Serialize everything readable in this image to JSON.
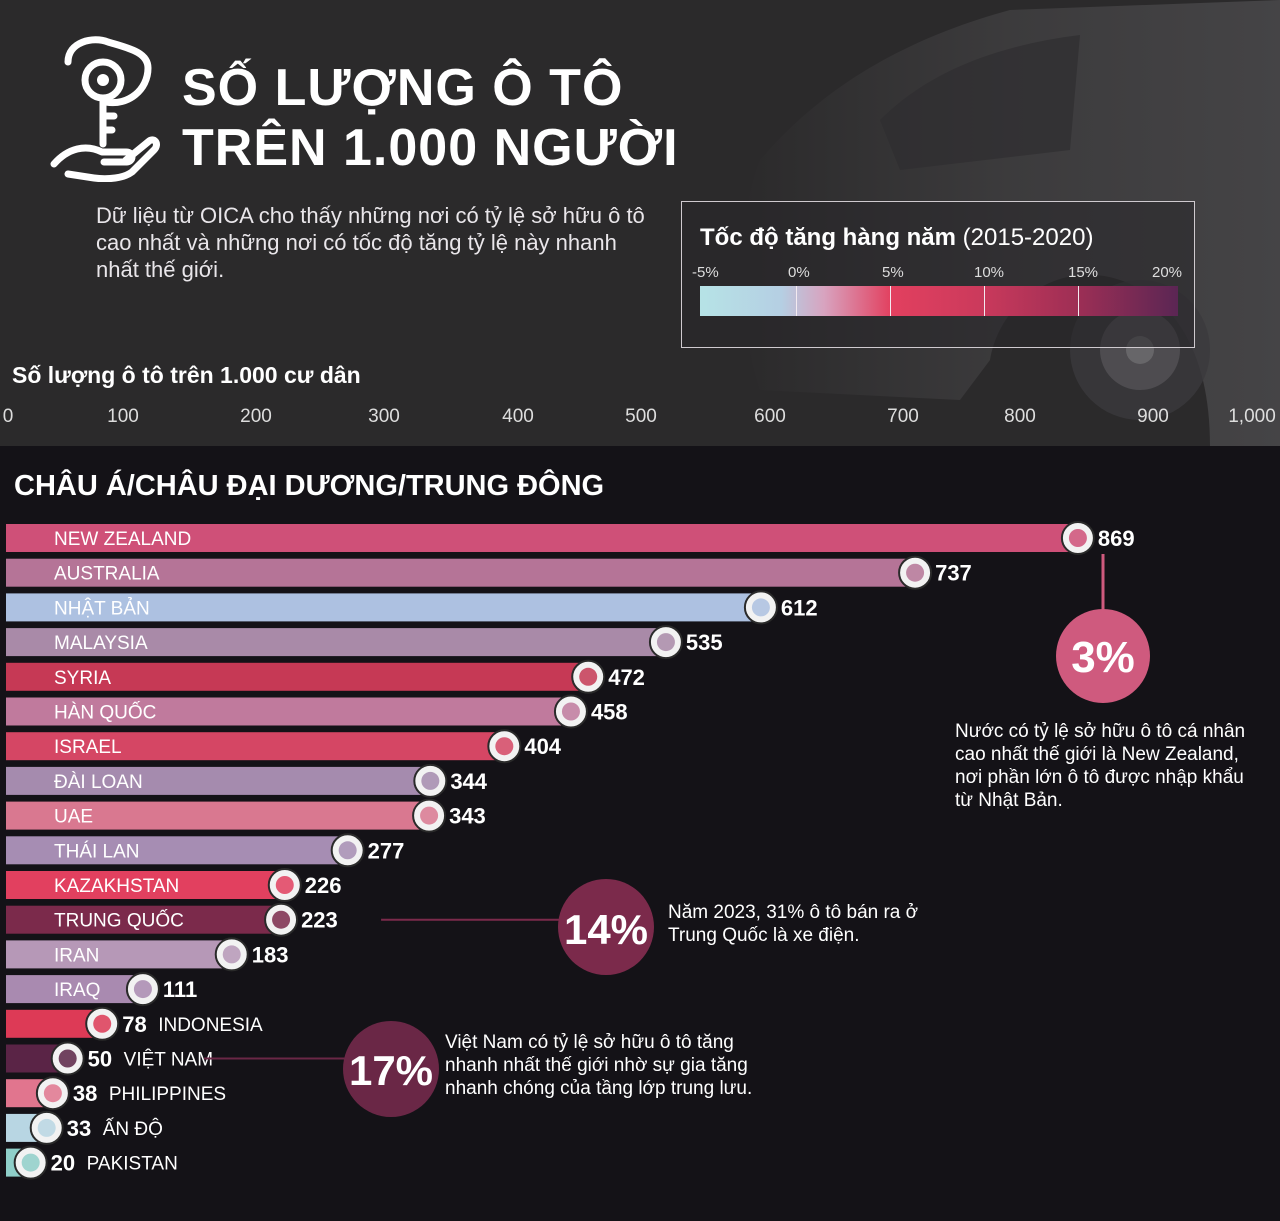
{
  "title": {
    "line1": "SỐ LƯỢNG Ô TÔ",
    "line2": "TRÊN 1.000 NGƯỜI"
  },
  "intro": "Dữ liệu từ OICA cho thấy những nơi có tỷ lệ sở hữu ô tô cao nhất và những nơi có tốc độ tăng tỷ lệ này nhanh nhất thế giới.",
  "legend": {
    "title_bold": "Tốc độ tăng hàng năm",
    "title_period": "(2015-2020)",
    "ticks": [
      "-5%",
      "0%",
      "5%",
      "10%",
      "15%",
      "20%"
    ],
    "colors": [
      "#b6e3e6",
      "#d8a3bf",
      "#e2405f",
      "#a02f55",
      "#5b2654"
    ]
  },
  "axis": {
    "title": "Số lượng ô tô trên 1.000 cư dân",
    "ticks": [
      "0",
      "100",
      "200",
      "300",
      "400",
      "500",
      "600",
      "700",
      "800",
      "900",
      "1,000"
    ]
  },
  "section_title": "CHÂU Á/CHÂU ĐẠI DƯƠNG/TRUNG ĐÔNG",
  "chart_data": {
    "type": "bar",
    "orientation": "horizontal",
    "title": "SỐ LƯỢNG Ô TÔ TRÊN 1.000 NGƯỜI",
    "xlabel": "Số lượng ô tô trên 1.000 cư dân",
    "xlim": [
      0,
      1000
    ],
    "categories": [
      "NEW ZEALAND",
      "AUSTRALIA",
      "NHẬT BẢN",
      "MALAYSIA",
      "SYRIA",
      "HÀN QUỐC",
      "ISRAEL",
      "ĐÀI LOAN",
      "UAE",
      "THÁI LAN",
      "KAZAKHSTAN",
      "TRUNG QUỐC",
      "IRAN",
      "IRAQ",
      "INDONESIA",
      "VIỆT NAM",
      "PHILIPPINES",
      "ẤN ĐỘ",
      "PAKISTAN"
    ],
    "values": [
      869,
      737,
      612,
      535,
      472,
      458,
      404,
      344,
      343,
      277,
      226,
      223,
      183,
      111,
      78,
      50,
      38,
      33,
      20
    ],
    "value_labels": [
      "869",
      "737",
      "612",
      "535",
      "472",
      "458",
      "404",
      "344",
      "343",
      "277",
      "226",
      "223",
      "183",
      "111",
      "78",
      "50",
      "38",
      "33",
      "20"
    ],
    "growth_colors": [
      "#cf5078",
      "#b57497",
      "#adc1e1",
      "#a98aa8",
      "#c63955",
      "#c07a9d",
      "#d54664",
      "#a58bae",
      "#d97890",
      "#a68db3",
      "#e2405f",
      "#7b2a4b",
      "#b698b7",
      "#a98ab0",
      "#dd3a56",
      "#5a2446",
      "#e1758e",
      "#b8d6e3",
      "#8fcfc9"
    ],
    "flags": [
      "flag-new-zealand-icon",
      "flag-australia-icon",
      "flag-japan-icon",
      "flag-malaysia-icon",
      "flag-syria-icon",
      "flag-south-korea-icon",
      "flag-israel-icon",
      "flag-taiwan-icon",
      "flag-uae-icon",
      "flag-thailand-icon",
      "flag-kazakhstan-icon",
      "flag-china-icon",
      "flag-iran-icon",
      "flag-iraq-icon",
      "flag-indonesia-icon",
      "flag-vietnam-icon",
      "flag-philippines-icon",
      "flag-india-icon",
      "flag-pakistan-icon"
    ],
    "callouts": [
      {
        "country": "NEW ZEALAND",
        "label": "3%",
        "text": "Nước có tỷ lệ sở hữu ô tô cá nhân cao nhất thế giới là New Zealand, nơi phần lớn ô tô được nhập khẩu từ Nhật Bản.",
        "color": "#cf5a7e"
      },
      {
        "country": "TRUNG QUỐC",
        "label": "14%",
        "text": "Năm 2023, 31% ô tô bán ra ở Trung Quốc là xe điện.",
        "color": "#7b2a4b"
      },
      {
        "country": "VIỆT NAM",
        "label": "17%",
        "text": "Việt Nam có tỷ lệ sở hữu ô tô tăng nhanh nhất thế giới nhờ sự gia tăng nhanh chóng của tầng lớp trung lưu.",
        "color": "#6a2746"
      }
    ]
  }
}
